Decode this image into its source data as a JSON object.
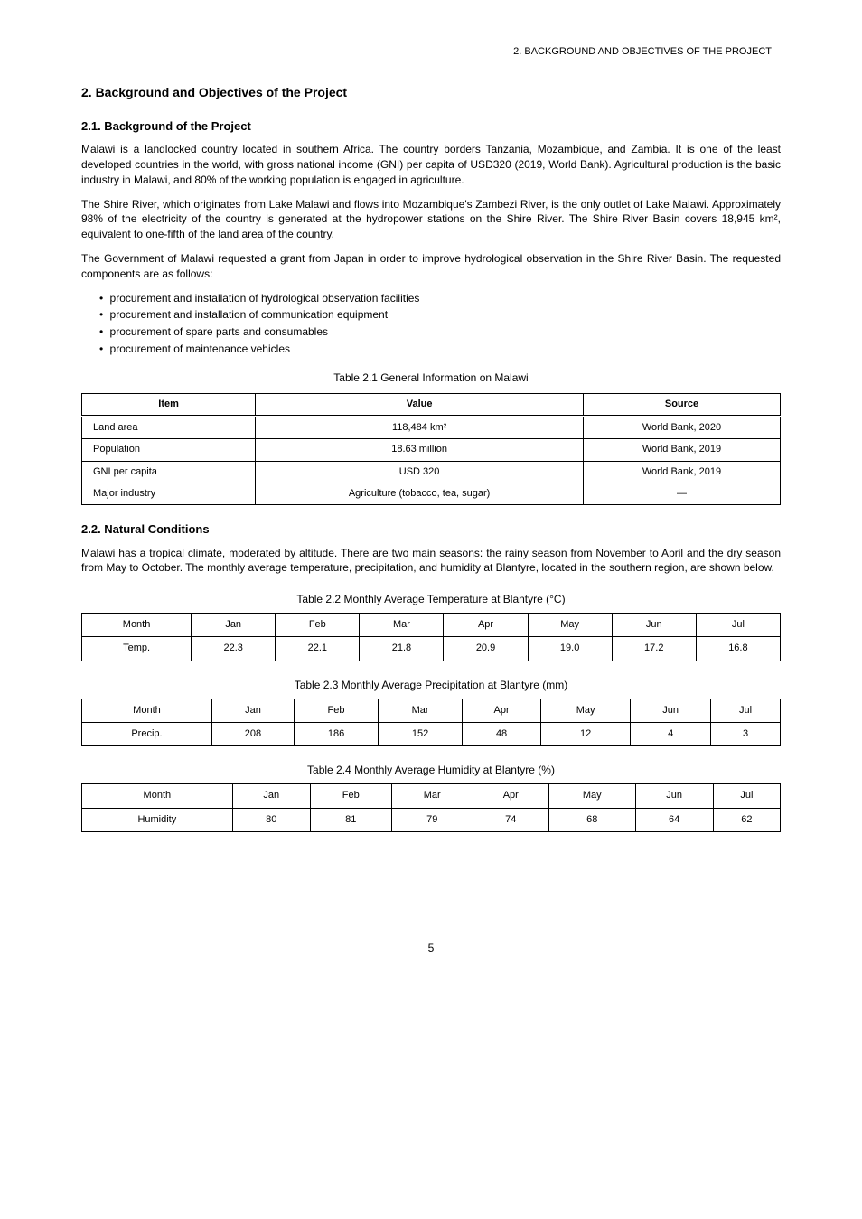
{
  "header": {
    "title": "2. BACKGROUND AND OBJECTIVES OF THE PROJECT"
  },
  "section1": {
    "title": "2. Background and Objectives of the Project",
    "sub1": {
      "title": "2.1. Background of the Project",
      "para1": "Malawi is a landlocked country located in southern Africa. The country borders Tanzania, Mozambique, and Zambia. It is one of the least developed countries in the world, with gross national income (GNI) per capita of USD320 (2019, World Bank). Agricultural production is the basic industry in Malawi, and 80% of the working population is engaged in agriculture.",
      "para2": "The Shire River, which originates from Lake Malawi and flows into Mozambique's Zambezi River, is the only outlet of Lake Malawi. Approximately 98% of the electricity of the country is generated at the hydropower stations on the Shire River. The Shire River Basin covers 18,945 km², equivalent to one-fifth of the land area of the country.",
      "list_intro": "The Government of Malawi requested a grant from Japan in order to improve hydrological observation in the Shire River Basin. The requested components are as follows:",
      "list": [
        "procurement and installation of hydrological observation facilities",
        "procurement and installation of communication equipment",
        "procurement of spare parts and consumables",
        "procurement of maintenance vehicles"
      ]
    },
    "sub2": {
      "title": "2.2. Natural Conditions",
      "para1": "Malawi has a tropical climate, moderated by altitude. There are two main seasons: the rainy season from November to April and the dry season from May to October. The monthly average temperature, precipitation, and humidity at Blantyre, located in the southern region, are shown below."
    }
  },
  "table1": {
    "caption": "Table 2.1 General Information on Malawi",
    "columns": [
      "Item",
      "Value",
      "Source"
    ],
    "rows": [
      [
        "Land area",
        "118,484 km²",
        "World Bank, 2020"
      ],
      [
        "Population",
        "18.63 million",
        "World Bank, 2019"
      ],
      [
        "GNI per capita",
        "USD 320",
        "World Bank, 2019"
      ],
      [
        "Major industry",
        "Agriculture (tobacco, tea, sugar)",
        "—"
      ]
    ]
  },
  "table2a": {
    "caption": "Table 2.2 Monthly Average Temperature at Blantyre (°C)",
    "columns": [
      "Month",
      "Jan",
      "Feb",
      "Mar",
      "Apr",
      "May",
      "Jun",
      "Jul"
    ],
    "rows": [
      [
        "Temp.",
        "22.3",
        "22.1",
        "21.8",
        "20.9",
        "19.0",
        "17.2",
        "16.8"
      ]
    ]
  },
  "table2b": {
    "caption": "Table 2.3 Monthly Average Precipitation at Blantyre (mm)",
    "columns": [
      "Month",
      "Jan",
      "Feb",
      "Mar",
      "Apr",
      "May",
      "Jun",
      "Jul"
    ],
    "rows": [
      [
        "Precip.",
        "208",
        "186",
        "152",
        "48",
        "12",
        "4",
        "3"
      ]
    ]
  },
  "table2c": {
    "caption": "Table 2.4 Monthly Average Humidity at Blantyre (%)",
    "columns": [
      "Month",
      "Jan",
      "Feb",
      "Mar",
      "Apr",
      "May",
      "Jun",
      "Jul"
    ],
    "rows": [
      [
        "Humidity",
        "80",
        "81",
        "79",
        "74",
        "68",
        "64",
        "62"
      ]
    ]
  },
  "footer": {
    "page": "5"
  }
}
